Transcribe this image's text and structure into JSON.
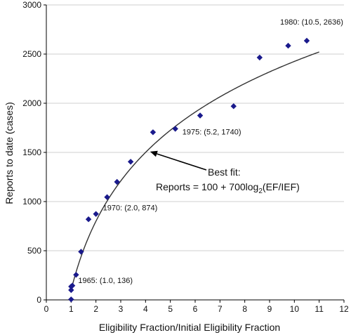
{
  "chart_data": {
    "type": "scatter",
    "xlabel": "Eligibility Fraction/Initial Eligibility Fraction",
    "ylabel": "Reports to date (cases)",
    "xlim": [
      0,
      12
    ],
    "ylim": [
      0,
      3000
    ],
    "xticks": [
      0,
      1,
      2,
      3,
      4,
      5,
      6,
      7,
      8,
      9,
      10,
      11,
      12
    ],
    "yticks": [
      0,
      500,
      1000,
      1500,
      2000,
      2500,
      3000
    ],
    "grid": "horizontal",
    "marker_color": "#1a1a8c",
    "curve_color": "#333333",
    "points": [
      {
        "x": 1.0,
        "y": 5
      },
      {
        "x": 1.0,
        "y": 100
      },
      {
        "x": 1.0,
        "y": 136
      },
      {
        "x": 1.05,
        "y": 145
      },
      {
        "x": 1.2,
        "y": 255
      },
      {
        "x": 1.4,
        "y": 490
      },
      {
        "x": 1.7,
        "y": 820
      },
      {
        "x": 2.0,
        "y": 874
      },
      {
        "x": 2.45,
        "y": 1045
      },
      {
        "x": 2.85,
        "y": 1200
      },
      {
        "x": 3.4,
        "y": 1405
      },
      {
        "x": 4.3,
        "y": 1705
      },
      {
        "x": 5.2,
        "y": 1740
      },
      {
        "x": 6.2,
        "y": 1875
      },
      {
        "x": 7.55,
        "y": 1970
      },
      {
        "x": 8.6,
        "y": 2465
      },
      {
        "x": 9.75,
        "y": 2585
      },
      {
        "x": 10.5,
        "y": 2636
      }
    ],
    "fit": {
      "a": 100,
      "b": 700,
      "x_from": 1.0,
      "x_to": 11.0
    },
    "annotations": [
      {
        "text": "1965: (1.0, 136)",
        "x": 1.0,
        "y": 136
      },
      {
        "text": "1970: (2.0, 874)",
        "x": 2.0,
        "y": 874
      },
      {
        "text": "1975: (5.2, 1740)",
        "x": 5.2,
        "y": 1740
      },
      {
        "text": "1980: (10.5, 2636)",
        "x": 10.5,
        "y": 2636
      }
    ],
    "fit_label": {
      "line1": "Best fit:",
      "line2_prefix": "Reports = 100 + 700log",
      "line2_sub": "2",
      "line2_suffix": "(EF/IEF)",
      "arrow_target": {
        "x": 4.1,
        "y": 1515
      }
    }
  }
}
